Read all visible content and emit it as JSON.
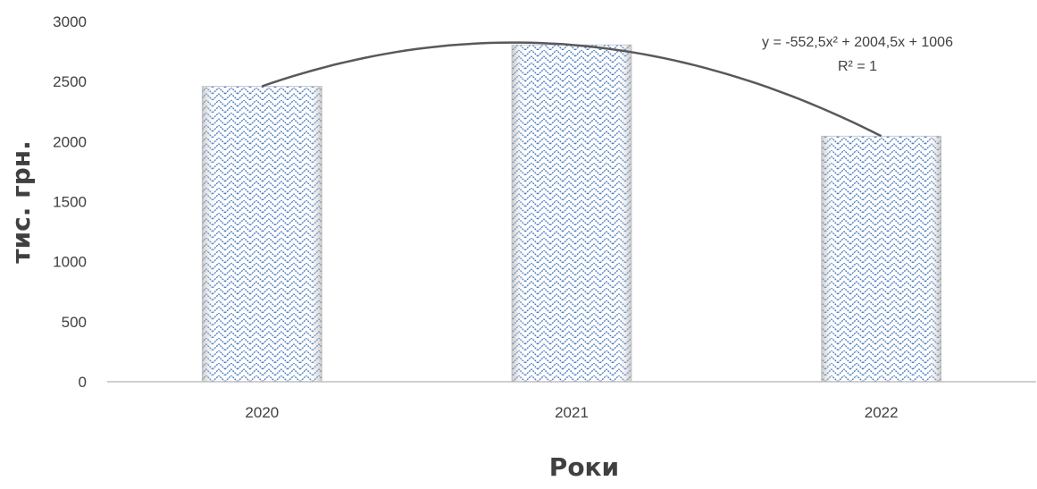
{
  "chart_data": {
    "type": "bar",
    "title": "",
    "xlabel": "Роки",
    "ylabel": "тис. грн.",
    "categories": [
      "2020",
      "2021",
      "2022"
    ],
    "values": [
      2460,
      2805,
      2045
    ],
    "ylim": [
      0,
      3000
    ],
    "yticks": [
      0,
      500,
      1000,
      1500,
      2000,
      2500,
      3000
    ],
    "grid": false,
    "legend": "none",
    "trendline": {
      "type": "polynomial",
      "order": 2,
      "equation": "y = -552,5x² + 2004,5x + 1006",
      "r_squared": "R² = 1"
    },
    "colors": {
      "bar_pattern": "#4a7cc0",
      "bar_edge": "#bfbfbf",
      "trendline": "#595959",
      "axis": "#bfbfbf",
      "text": "#404040"
    }
  }
}
